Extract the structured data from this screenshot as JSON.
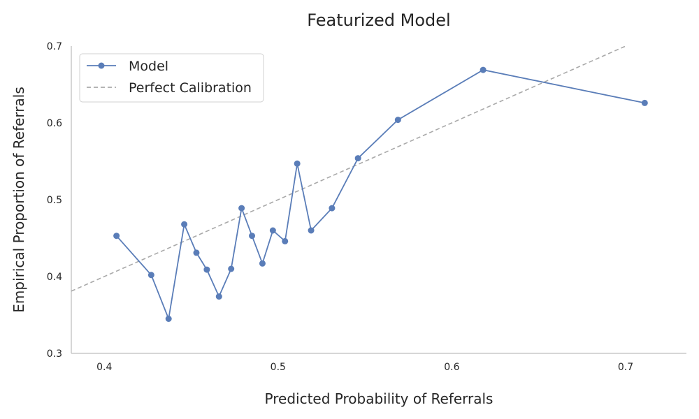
{
  "chart_data": {
    "type": "line",
    "title": "Featurized Model",
    "xlabel": "Predicted Probability of Referrals",
    "ylabel": "Empirical Proportion of Referrals",
    "xlim": [
      0.381,
      0.735
    ],
    "ylim": [
      0.3,
      0.7
    ],
    "xticks": [
      0.4,
      0.5,
      0.6,
      0.7
    ],
    "yticks": [
      0.3,
      0.4,
      0.5,
      0.6,
      0.7
    ],
    "xtick_labels": [
      "0.4",
      "0.5",
      "0.6",
      "0.7"
    ],
    "ytick_labels": [
      "0.3",
      "0.4",
      "0.5",
      "0.6",
      "0.7"
    ],
    "grid": false,
    "legend_position": "top-left",
    "series": [
      {
        "name": "Model",
        "color": "#5a7db8",
        "style": "solid",
        "marker": "circle",
        "x": [
          0.407,
          0.427,
          0.437,
          0.446,
          0.453,
          0.459,
          0.466,
          0.473,
          0.479,
          0.485,
          0.491,
          0.497,
          0.504,
          0.511,
          0.519,
          0.531,
          0.546,
          0.569,
          0.618,
          0.711
        ],
        "y": [
          0.453,
          0.402,
          0.345,
          0.468,
          0.431,
          0.409,
          0.374,
          0.41,
          0.489,
          0.453,
          0.417,
          0.46,
          0.446,
          0.547,
          0.46,
          0.489,
          0.554,
          0.604,
          0.669,
          0.626
        ]
      },
      {
        "name": "Perfect Calibration",
        "color": "#a9a9a9",
        "style": "dashed",
        "marker": "none",
        "x": [
          0.381,
          0.7
        ],
        "y": [
          0.381,
          0.7
        ]
      }
    ]
  }
}
